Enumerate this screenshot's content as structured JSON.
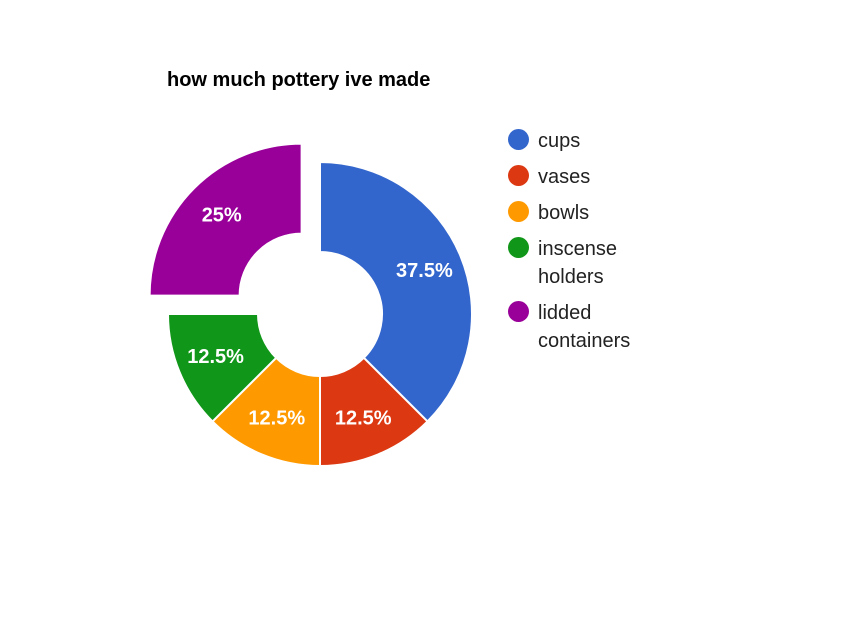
{
  "chart_data": {
    "type": "pie",
    "title": "how much pottery ive made",
    "donut": true,
    "legend_position": "right",
    "slices": [
      {
        "label": "cups",
        "value": 37.5,
        "display": "37.5%",
        "color": "#3366cc",
        "offset": false
      },
      {
        "label": "vases",
        "value": 12.5,
        "display": "12.5%",
        "color": "#dc3912",
        "offset": false
      },
      {
        "label": "bowls",
        "value": 12.5,
        "display": "12.5%",
        "color": "#ff9900",
        "offset": false
      },
      {
        "label": "inscense holders",
        "value": 12.5,
        "display": "12.5%",
        "color": "#109618",
        "offset": false
      },
      {
        "label": "lidded containers",
        "value": 25,
        "display": "25%",
        "color": "#990099",
        "offset": true
      }
    ]
  }
}
